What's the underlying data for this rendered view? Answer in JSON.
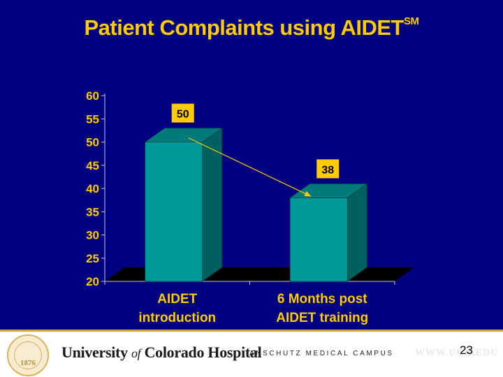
{
  "slide": {
    "title": "Patient Complaints using AIDET",
    "title_superscript": "SM",
    "page_number": "23"
  },
  "footer": {
    "university": "University",
    "of": "of",
    "hospital": "Colorado Hospital",
    "campus": "ANSCHUTZ MEDICAL CAMPUS",
    "website": "WWW.UCH.EDU",
    "seal_number": "1876"
  },
  "colors": {
    "background": "#000080",
    "accent": "#ffcc00",
    "bar_front": "#009999",
    "bar_side": "#006060",
    "bar_top": "#007a7a",
    "floor": "#000000",
    "label_box": "#ffcc00",
    "footer": "#ffffff"
  },
  "chart_data": {
    "type": "bar",
    "categories": [
      [
        "AIDET",
        "introduction"
      ],
      [
        "6 Months post",
        "AIDET training"
      ]
    ],
    "values": [
      50,
      38
    ],
    "data_labels": [
      "50",
      "38"
    ],
    "yticks": [
      20,
      25,
      30,
      35,
      40,
      45,
      50,
      55,
      60
    ],
    "ylim": [
      20,
      60
    ],
    "xlabel": "",
    "ylabel": "",
    "grid": false,
    "legend": "none",
    "style": "3d",
    "annotations": [
      {
        "type": "arrow",
        "from_category": 0,
        "to_category": 1
      }
    ]
  }
}
